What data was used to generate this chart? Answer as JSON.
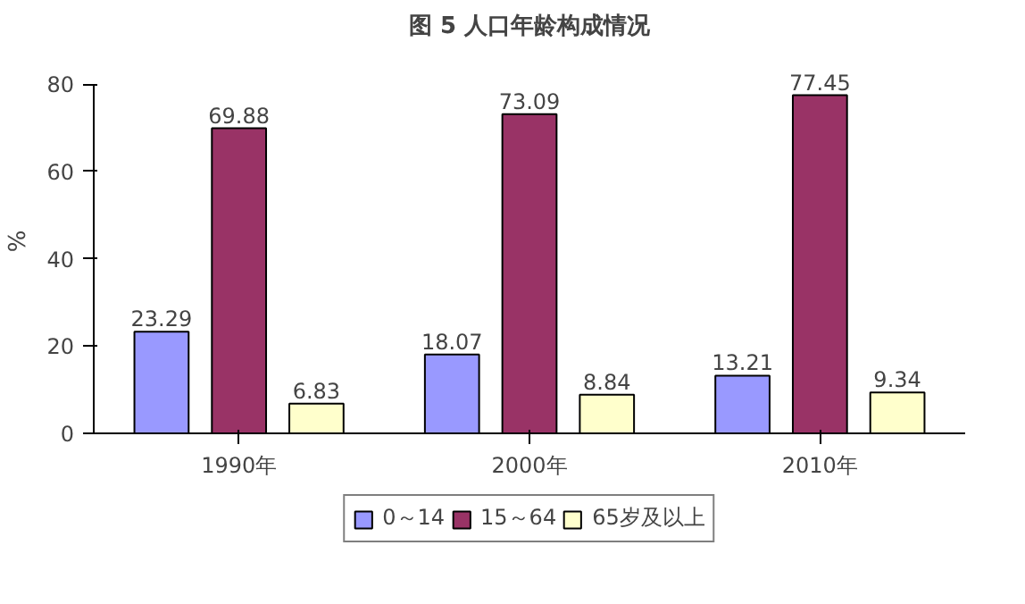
{
  "chart_data": {
    "type": "bar",
    "title": "图 5 人口年龄构成情况",
    "ylabel": "%",
    "categories": [
      "1990年",
      "2000年",
      "2010年"
    ],
    "series": [
      {
        "name": "0～14",
        "color": "#9999ff",
        "values": [
          23.29,
          18.07,
          13.21
        ]
      },
      {
        "name": "15～64",
        "color": "#993366",
        "values": [
          69.88,
          73.09,
          77.45
        ]
      },
      {
        "name": "65岁及以上",
        "color": "#ffffcc",
        "values": [
          6.83,
          8.84,
          9.34
        ]
      }
    ],
    "ylim": [
      0,
      80
    ],
    "yticks": [
      0,
      20,
      40,
      60,
      80
    ],
    "data_labels": true,
    "legend": "bottom",
    "grid": false
  }
}
